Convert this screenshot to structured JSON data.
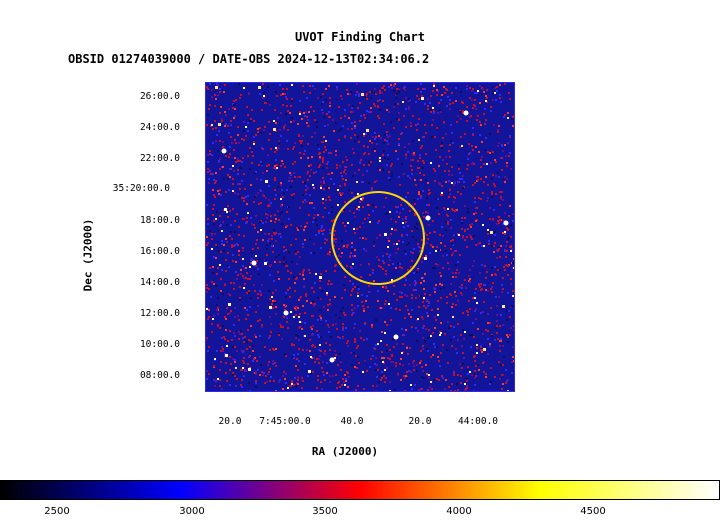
{
  "title": "UVOT Finding Chart",
  "subtitle": "OBSID 01274039000 / DATE-OBS 2024-12-13T02:34:06.2",
  "colors": {
    "background_field": "#12159a",
    "frame": "#2929ff",
    "region_circle": "#ffd700"
  },
  "chart_data": {
    "type": "heatmap",
    "xlabel": "RA (J2000)",
    "ylabel": "Dec (J2000)",
    "x_ticks": [
      "20.0",
      "7:45:00.0",
      "40.0",
      "20.0",
      "44:00.0"
    ],
    "y_ticks": [
      "26:00.0",
      "24:00.0",
      "22:00.0",
      "35:20:00.0",
      "18:00.0",
      "16:00.0",
      "14:00.0",
      "12:00.0",
      "10:00.0",
      "08:00.0"
    ],
    "colorbar": {
      "ticks": [
        "2500",
        "3000",
        "3500",
        "4000",
        "4500"
      ],
      "colors": [
        "#000000",
        "#0000ff",
        "#ff0000",
        "#ffff00",
        "#ffffff"
      ]
    },
    "annotations": [
      "source region circle"
    ],
    "grid": false
  }
}
